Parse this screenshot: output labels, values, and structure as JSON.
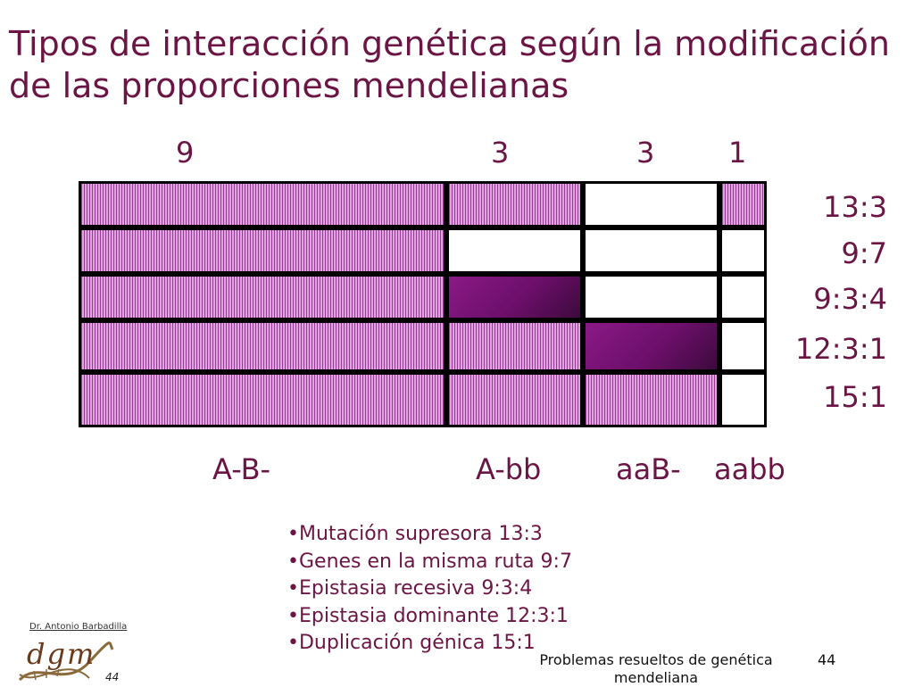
{
  "title": "Tipos de interacción genética según la modificación de las proporciones mendelianas",
  "header_ratios": [
    "9",
    "3",
    "3",
    "1"
  ],
  "rows": [
    {
      "label": "13:3",
      "cells": [
        "hatch",
        "hatch",
        "white",
        "hatch"
      ]
    },
    {
      "label": "9:7",
      "cells": [
        "hatch",
        "white",
        "white",
        "white"
      ]
    },
    {
      "label": "9:3:4",
      "cells": [
        "hatch",
        "solid",
        "white",
        "white"
      ]
    },
    {
      "label": "12:3:1",
      "cells": [
        "hatch",
        "hatch",
        "solid",
        "white"
      ]
    },
    {
      "label": "15:1",
      "cells": [
        "hatch",
        "hatch",
        "hatch",
        "white"
      ]
    }
  ],
  "genotypes": [
    "A-B-",
    "A-bb",
    "aaB-",
    "aabb"
  ],
  "bullets": [
    "Mutación supresora 13:3",
    "Genes en la misma ruta 9:7",
    "Epistasia recesiva 9:3:4",
    "Epistasia dominante 12:3:1",
    "Duplicación génica 15:1"
  ],
  "footer": {
    "text": "Problemas resueltos de genética mendeliana",
    "page": "44"
  },
  "logo": {
    "author": "Dr. Antonio Barbadilla",
    "text": "dgm",
    "number": "44"
  },
  "colors": {
    "title": "#6b1545",
    "hatch": "#d27fd0",
    "solid": "#6c0f6a"
  }
}
